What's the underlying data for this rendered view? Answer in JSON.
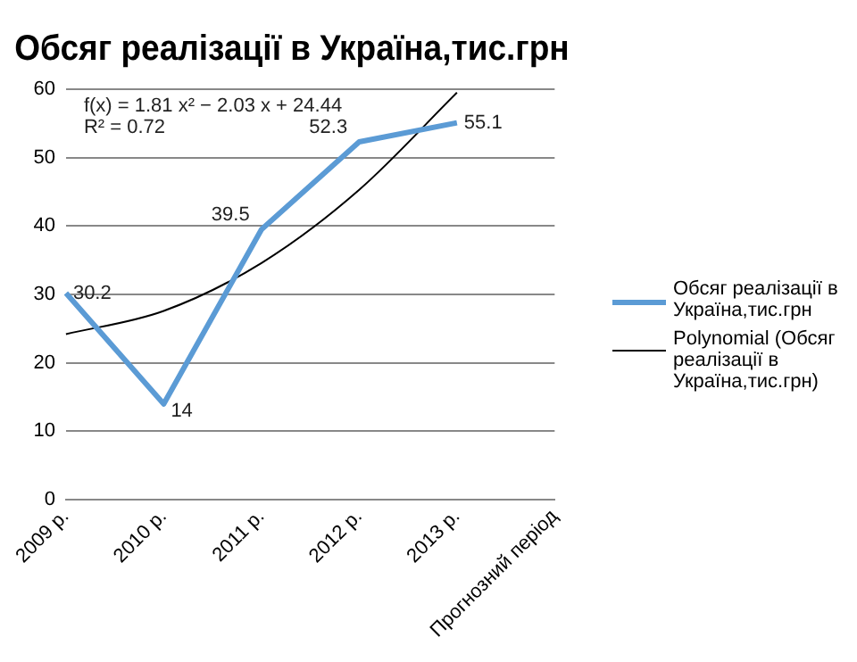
{
  "chart_data": {
    "type": "line",
    "title": "Обсяг реалізації в Україна,тис.грн",
    "categories": [
      "2009 р.",
      "2010 р.",
      "2011 р.",
      "2012 р.",
      "2013 р.",
      "Прогнозний період"
    ],
    "series": [
      {
        "name": "Обсяг реалізації в Україна,тис.грн",
        "color": "#5b9bd5",
        "values": [
          30.2,
          14,
          39.5,
          52.3,
          55.1,
          null
        ],
        "value_labels": [
          "30.2",
          "14",
          "39.5",
          "52.3",
          "55.1",
          null
        ]
      },
      {
        "name": "Polynomial (Обсяг реалізації в Україна,тис.грн)",
        "color": "#000000",
        "values": [
          24.2,
          27.6,
          34.6,
          45.3,
          59.5,
          null
        ]
      }
    ],
    "annotations": [
      "f(x) = 1.81 x² − 2.03 x + 24.44",
      "R² = 0.72"
    ],
    "ylim": [
      0,
      60
    ],
    "yticks": [
      0,
      10,
      20,
      30,
      40,
      50,
      60
    ],
    "grid": "y",
    "legend": "right",
    "marker": "none",
    "line_style": "solid"
  }
}
